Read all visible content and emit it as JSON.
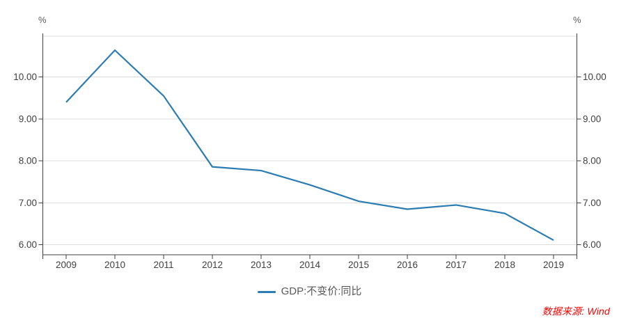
{
  "header": {
    "title": ""
  },
  "legend": {
    "label": "GDP:不变价:同比"
  },
  "source": {
    "text": "数据来源: Wind"
  },
  "colors": {
    "line": "#2b7cb3",
    "axis": "#3f3f3f",
    "grid": "#dcdcdc",
    "tick_label": "#404040",
    "legend_label": "#595959",
    "source": "#ff0000",
    "background": "#ffffff"
  },
  "chart_data": {
    "type": "line",
    "title": "",
    "xlabel": "",
    "ylabel": "",
    "y_unit_left": "%",
    "y_unit_right": "%",
    "x": [
      "2009",
      "2010",
      "2011",
      "2012",
      "2013",
      "2014",
      "2015",
      "2016",
      "2017",
      "2018",
      "2019"
    ],
    "series": [
      {
        "name": "GDP:不变价:同比",
        "color": "#2b7cb3",
        "values": [
          9.4,
          10.64,
          9.55,
          7.86,
          7.77,
          7.43,
          7.04,
          6.85,
          6.95,
          6.75,
          6.11
        ]
      }
    ],
    "yticks": [
      6,
      7,
      8,
      9,
      10
    ],
    "ytick_decimals": 2,
    "ylim": [
      5.763,
      10.974
    ],
    "grid": "horizontal-only",
    "dual_y_axis": true,
    "legend_position": "bottom-center"
  }
}
